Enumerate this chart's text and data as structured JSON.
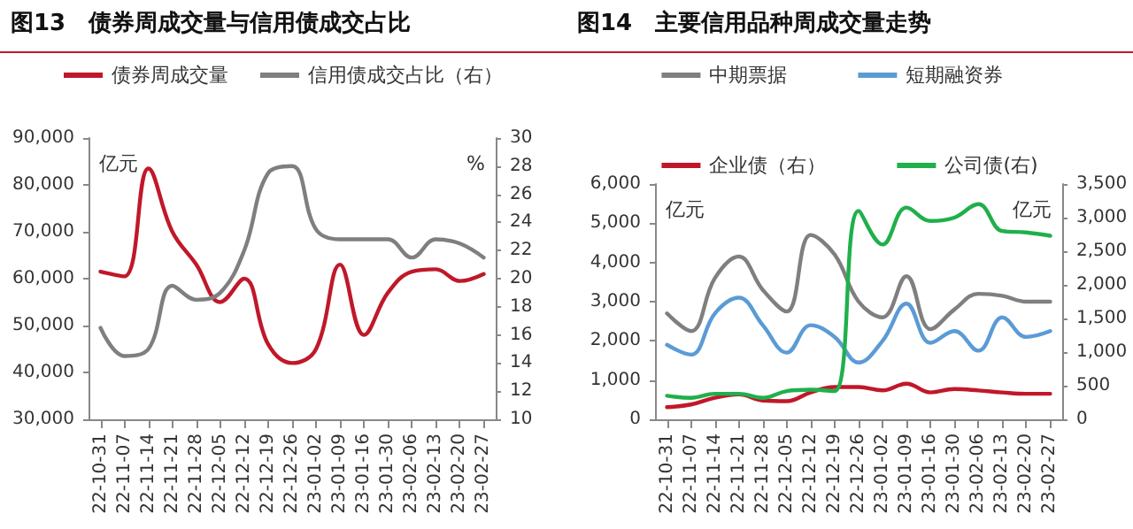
{
  "chart_data": [
    {
      "type": "line",
      "title": "图13　债券周成交量与信用债成交占比",
      "ylabel": "亿元",
      "y2label": "%",
      "categories": [
        "22-10-31",
        "22-11-07",
        "22-11-14",
        "22-11-21",
        "22-11-28",
        "22-12-05",
        "22-12-12",
        "22-12-19",
        "22-12-26",
        "23-01-02",
        "23-01-09",
        "23-01-16",
        "23-01-30",
        "23-02-06",
        "23-02-13",
        "23-02-20",
        "23-02-27"
      ],
      "series": [
        {
          "name": "债券周成交量",
          "color": "#c0182a",
          "values": [
            61500,
            60500,
            83500,
            70000,
            63000,
            55000,
            60000,
            46000,
            42000,
            45000,
            63000,
            48000,
            57000,
            61500,
            62000,
            59500,
            61000
          ]
        },
        {
          "name": "信用债成交占比（右）",
          "color": "#7f7f7f",
          "axis": "y2",
          "values": [
            16.5,
            14.5,
            15,
            19.5,
            18.5,
            19,
            22,
            27.5,
            28,
            23.5,
            22.8,
            22.8,
            22.8,
            21.5,
            22.8,
            22.5,
            21.5
          ]
        }
      ],
      "ylim": [
        30000,
        90000
      ],
      "yticks": [
        {
          "value": 30000,
          "label": "30,000"
        },
        {
          "value": 40000,
          "label": "40,000"
        },
        {
          "value": 50000,
          "label": "50,000"
        },
        {
          "value": 60000,
          "label": "60,000"
        },
        {
          "value": 70000,
          "label": "70,000"
        },
        {
          "value": 80000,
          "label": "80,000"
        },
        {
          "value": 90000,
          "label": "90,000"
        }
      ],
      "y2lim": [
        10,
        30
      ],
      "y2ticks": [
        10,
        12,
        14,
        16,
        18,
        20,
        22,
        24,
        26,
        28,
        30
      ],
      "legend": "top",
      "marker": "none",
      "grid": false
    },
    {
      "type": "line",
      "title": "图14　主要信用品种周成交量走势",
      "ylabel": "亿元",
      "y2label": "亿元",
      "categories": [
        "22-10-31",
        "22-11-07",
        "22-11-14",
        "22-11-21",
        "22-11-28",
        "22-12-05",
        "22-12-12",
        "22-12-19",
        "22-12-26",
        "23-01-02",
        "23-01-09",
        "23-01-16",
        "23-01-30",
        "23-02-06",
        "23-02-13",
        "23-02-20",
        "23-02-27"
      ],
      "series": [
        {
          "name": "中期票据",
          "color": "#7f7f7f",
          "values": [
            2700,
            2250,
            3600,
            4150,
            3300,
            2750,
            4700,
            4200,
            3000,
            2600,
            3650,
            2300,
            2800,
            3200,
            3150,
            3000,
            3000
          ]
        },
        {
          "name": "短期融资券",
          "color": "#5b9bd5",
          "values": [
            1900,
            1650,
            2700,
            3100,
            2400,
            1700,
            2400,
            2100,
            1450,
            2000,
            2950,
            1950,
            2250,
            1750,
            2600,
            2100,
            2250
          ]
        },
        {
          "name": "企业债（右）",
          "color": "#c0182a",
          "axis": "y2",
          "values": [
            180,
            220,
            320,
            370,
            280,
            270,
            400,
            480,
            480,
            430,
            530,
            400,
            450,
            430,
            400,
            380,
            380
          ]
        },
        {
          "name": "公司债(右)",
          "color": "#1fb04b",
          "axis": "y2",
          "values": [
            350,
            320,
            380,
            380,
            320,
            420,
            440,
            420,
            3100,
            2600,
            3150,
            2950,
            3000,
            3200,
            2800,
            2780,
            2730
          ]
        }
      ],
      "ylim": [
        0,
        6000
      ],
      "yticks": [
        0,
        {
          "value": 1000,
          "label": "1,000"
        },
        {
          "value": 2000,
          "label": "2,000"
        },
        {
          "value": 3000,
          "label": "3,000"
        },
        {
          "value": 4000,
          "label": "4,000"
        },
        {
          "value": 5000,
          "label": "5,000"
        },
        {
          "value": 6000,
          "label": "6,000"
        }
      ],
      "y2lim": [
        0,
        3500
      ],
      "y2ticks": [
        0,
        500,
        {
          "value": 1000,
          "label": "1,000"
        },
        {
          "value": 1500,
          "label": "1,500"
        },
        {
          "value": 2000,
          "label": "2,000"
        },
        {
          "value": 2500,
          "label": "2,500"
        },
        {
          "value": 3000,
          "label": "3,000"
        },
        {
          "value": 3500,
          "label": "3,500"
        }
      ],
      "legend": "top",
      "marker": "none",
      "grid": false
    }
  ]
}
